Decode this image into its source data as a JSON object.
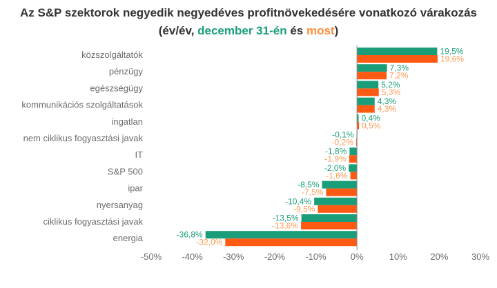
{
  "title_line1": "Az S&P szektorok negyedik negyedéves profitnövekedésére vonatkozó várakozás",
  "title_line2": {
    "prefix": "(év/év, ",
    "series1": "december 31-én",
    "middle": " és ",
    "series2": "most",
    "suffix": ")"
  },
  "colors": {
    "series1": "#1a9e7a",
    "series2": "#ff5a14",
    "series2_label": "#ff9a55"
  },
  "chart_data": {
    "type": "bar",
    "orientation": "horizontal",
    "categories": [
      "közszolgáltatók",
      "pénzügy",
      "egészségügy",
      "kommunikációs szolgáltatások",
      "ingatlan",
      "nem ciklikus fogyasztási javak",
      "IT",
      "S&P 500",
      "ipar",
      "nyersanyag",
      "ciklikus fogyasztási javak",
      "energia"
    ],
    "series": [
      {
        "name": "december 31-én",
        "values": [
          19.5,
          7.3,
          5.2,
          4.3,
          0.4,
          -0.1,
          -1.8,
          -2.0,
          -8.5,
          -10.4,
          -13.5,
          -36.8
        ],
        "labels": [
          "19,5%",
          "7,3%",
          "5,2%",
          "4,3%",
          "0,4%",
          "-0,1%",
          "-1,8%",
          "-2,0%",
          "-8,5%",
          "-10,4%",
          "-13,5%",
          "-36,8%"
        ]
      },
      {
        "name": "most",
        "values": [
          19.6,
          7.2,
          5.3,
          4.3,
          0.5,
          -0.2,
          -1.9,
          -1.6,
          -7.5,
          -9.5,
          -13.6,
          -32.0
        ],
        "labels": [
          "19,6%",
          "7,2%",
          "5,3%",
          "4,3%",
          "0,5%",
          "-0,2%",
          "-1,9%",
          "-1,6%",
          "-7,5%",
          "-9,5%",
          "-13,6%",
          "-32,0%"
        ]
      }
    ],
    "xlim": [
      -50,
      30
    ],
    "x_ticks": [
      -50,
      -40,
      -30,
      -20,
      -10,
      0,
      10,
      20,
      30
    ],
    "x_tick_labels": [
      "-50%",
      "-40%",
      "-30%",
      "-20%",
      "-10%",
      "0%",
      "10%",
      "20%",
      "30%"
    ],
    "grid": false
  }
}
